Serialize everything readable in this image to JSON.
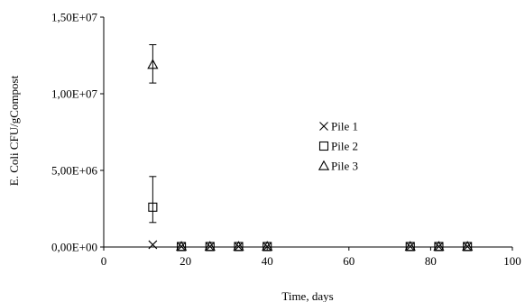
{
  "chart_data": {
    "type": "scatter",
    "title": "",
    "xlabel": "Time, days",
    "ylabel": "E. Coli CFU/gCompost",
    "xlim": [
      0,
      100
    ],
    "ylim": [
      0,
      15000000
    ],
    "x_ticks": [
      0,
      20,
      40,
      60,
      80,
      100
    ],
    "x_tick_labels": [
      "0",
      "20",
      "40",
      "60",
      "80",
      "100"
    ],
    "y_ticks": [
      0,
      5000000,
      10000000,
      15000000
    ],
    "y_tick_labels": [
      "0,00E+00",
      "5,00E+06",
      "1,00E+07",
      "1,50E+07"
    ],
    "grid": false,
    "legend_position": "center-right",
    "series": [
      {
        "name": "Pile 1",
        "marker": "x",
        "points": [
          {
            "x": 12,
            "y": 150000
          },
          {
            "x": 19,
            "y": 30000
          },
          {
            "x": 26,
            "y": 30000
          },
          {
            "x": 33,
            "y": 30000
          },
          {
            "x": 40,
            "y": 30000
          },
          {
            "x": 75,
            "y": 30000
          },
          {
            "x": 82,
            "y": 30000
          },
          {
            "x": 89,
            "y": 30000
          }
        ]
      },
      {
        "name": "Pile 2",
        "marker": "square",
        "points": [
          {
            "x": 12,
            "y": 2600000,
            "err_low": 1600000,
            "err_high": 4600000
          },
          {
            "x": 19,
            "y": 30000
          },
          {
            "x": 26,
            "y": 30000
          },
          {
            "x": 33,
            "y": 30000
          },
          {
            "x": 40,
            "y": 30000
          },
          {
            "x": 75,
            "y": 30000
          },
          {
            "x": 82,
            "y": 30000
          },
          {
            "x": 89,
            "y": 30000
          }
        ]
      },
      {
        "name": "Pile 3",
        "marker": "triangle",
        "points": [
          {
            "x": 12,
            "y": 11900000,
            "err_low": 10700000,
            "err_high": 13200000
          },
          {
            "x": 19,
            "y": 30000
          },
          {
            "x": 26,
            "y": 30000
          },
          {
            "x": 33,
            "y": 30000
          },
          {
            "x": 40,
            "y": 30000
          },
          {
            "x": 75,
            "y": 30000
          },
          {
            "x": 82,
            "y": 30000
          },
          {
            "x": 89,
            "y": 30000
          }
        ]
      }
    ]
  }
}
